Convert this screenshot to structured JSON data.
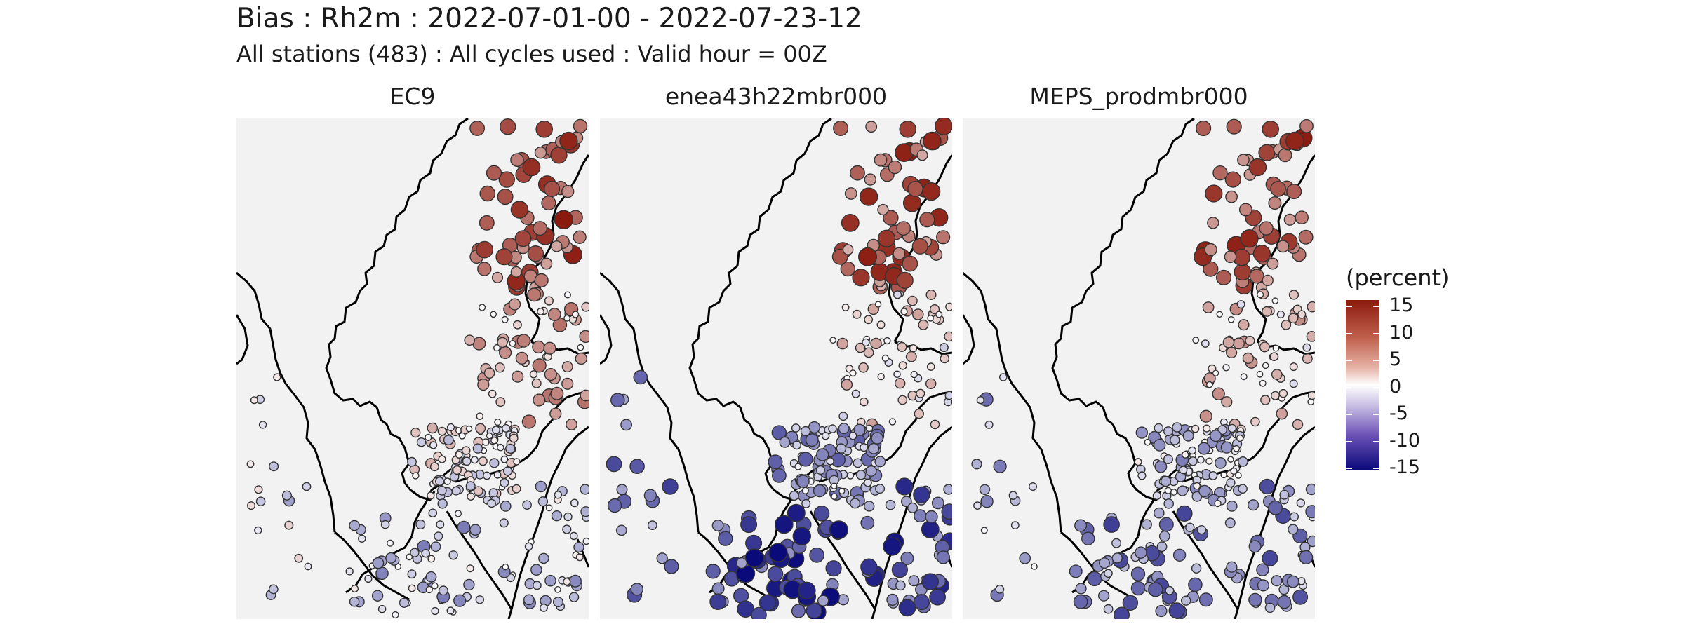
{
  "title": "Bias : Rh2m : 2022-07-01-00 - 2022-07-23-12",
  "subtitle": "All stations (483) : All cycles used : Valid hour = 00Z",
  "panels": [
    {
      "label": "EC9",
      "offset": 0
    },
    {
      "label": "enea43h22mbr000",
      "offset": -2.5
    },
    {
      "label": "MEPS_prodmbr000",
      "offset": -1.5
    }
  ],
  "legend": {
    "title": "(percent)",
    "ticks": [
      "15",
      "10",
      "5",
      "0",
      "-5",
      "-10",
      "-15"
    ],
    "scale_min": -15,
    "scale_max": 15
  },
  "colors": {
    "background": "#f2f2f2",
    "coast": "#000000",
    "high": "#8b1a0e",
    "mid": "#ffffff",
    "low": "#0a0a7a"
  }
}
